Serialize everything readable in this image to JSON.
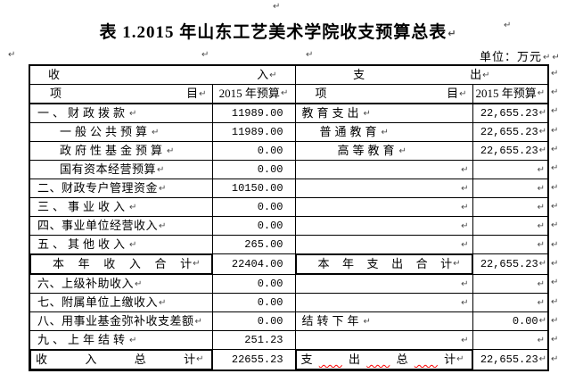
{
  "pilcrow": "↵",
  "title": "表 1.2015 年山东工艺美术学院收支预算总表",
  "unit_label": "单位：万元",
  "table": {
    "header": {
      "income_char1": "收",
      "income_char2": "入",
      "expense_char1": "支",
      "expense_char2": "出",
      "item_char1": "项",
      "item_char2": "目",
      "budget_label": "2015 年预算"
    },
    "rows": [
      {
        "income_label": "一、财政拨款",
        "income_indent": 0,
        "income_value": "11989.00",
        "expense_label": "教育支出",
        "expense_indent": 0,
        "expense_value": "22,655.23"
      },
      {
        "income_label": "一般公共预算",
        "income_indent": 1,
        "income_value": "11989.00",
        "expense_label": "普通教育",
        "expense_indent": 1,
        "expense_value": "22,655.23"
      },
      {
        "income_label": "政府性基金预算",
        "income_indent": 1,
        "income_value": "0.00",
        "expense_label": "高等教育",
        "expense_indent": 2,
        "expense_value": "22,655.23"
      },
      {
        "income_label": "国有资本经营预算",
        "income_indent": 1,
        "income_value": "0.00",
        "expense_label": "",
        "expense_value": ""
      },
      {
        "income_label": "二、财政专户管理资金",
        "income_indent": 0,
        "income_value": "10150.00",
        "expense_label": "",
        "expense_value": ""
      },
      {
        "income_label": "三、事业收入",
        "income_indent": 0,
        "income_value": "0.00",
        "expense_label": "",
        "expense_value": ""
      },
      {
        "income_label": "四、事业单位经营收入",
        "income_indent": 0,
        "income_value": "0.00",
        "expense_label": "",
        "expense_value": ""
      },
      {
        "income_label": "五、其他收入",
        "income_indent": 0,
        "income_value": "265.00",
        "expense_label": "",
        "expense_value": ""
      },
      {
        "income_label": "本年收入合计",
        "income_spread": "center",
        "income_value": "22404.00",
        "expense_label": "本年支出合计",
        "expense_spread": "center",
        "expense_value": "22,655.23"
      },
      {
        "income_label": "六、上级补助收入",
        "income_indent": 0,
        "income_value": "0.00",
        "expense_label": "",
        "expense_value": ""
      },
      {
        "income_label": "七、附属单位上缴收入",
        "income_indent": 0,
        "income_value": "0.00",
        "expense_label": "",
        "expense_value": ""
      },
      {
        "income_label": "八、用事业基金弥补收支差额",
        "income_indent": 0,
        "income_value": "0.00",
        "expense_label": "结转下年",
        "expense_indent": 0,
        "expense_value": "0.00"
      },
      {
        "income_label": "九、上年结转",
        "income_indent": 0,
        "income_value": "251.23",
        "expense_label": "",
        "expense_value": ""
      },
      {
        "income_label": "收入总计",
        "income_spread": "full",
        "income_value": "22655.23",
        "expense_label": "支出总计",
        "expense_spread": "full",
        "expense_squiggle": true,
        "expense_value": "22,655.23"
      }
    ]
  }
}
